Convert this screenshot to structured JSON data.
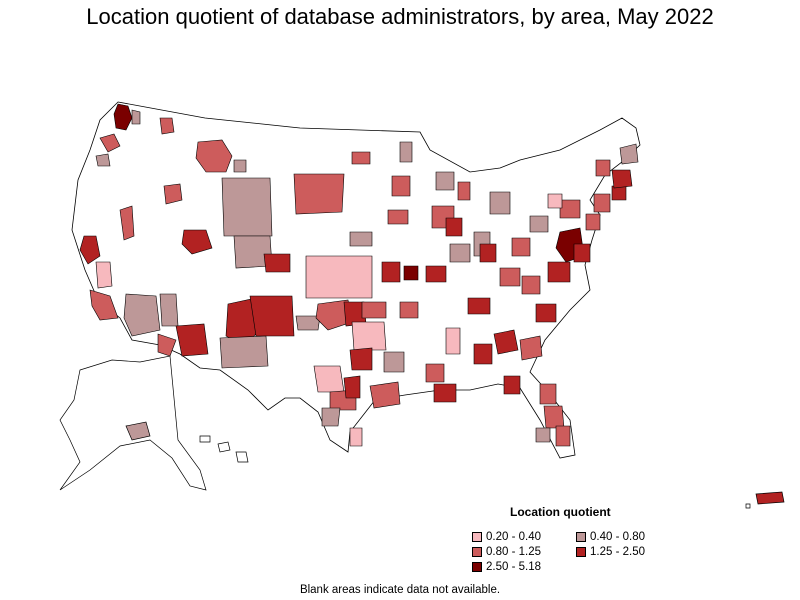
{
  "title": "Location quotient of database administrators, by area, May 2022",
  "legend": {
    "title": "Location quotient",
    "items": [
      {
        "label": "0.20 - 0.40",
        "color": "#f7b9be"
      },
      {
        "label": "0.40 - 0.80",
        "color": "#bd9898"
      },
      {
        "label": "0.80 - 1.25",
        "color": "#cd5c5c"
      },
      {
        "label": "1.25 - 2.50",
        "color": "#b22222"
      },
      {
        "label": "2.50 - 5.18",
        "color": "#7a0000"
      }
    ]
  },
  "footnote": "Blank areas indicate data not available.",
  "colors": {
    "outline": "#000000",
    "blank": "#ffffff"
  }
}
